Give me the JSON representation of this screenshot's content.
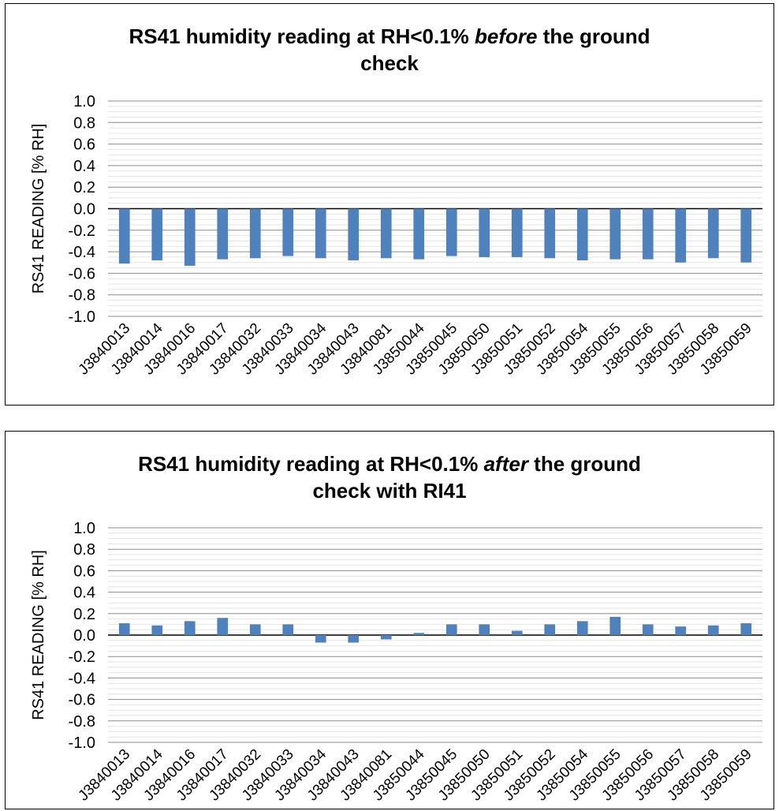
{
  "chart_data": [
    {
      "type": "bar",
      "title": {
        "before": "RS41 humidity reading at RH<0.1% ",
        "emph": "before",
        "after": " the ground",
        "line2": "check"
      },
      "ylabel": "RS41 READING [% RH]",
      "ylim": [
        -1.0,
        1.0
      ],
      "ytick_labels": [
        "1.0",
        "0.8",
        "0.6",
        "0.4",
        "0.2",
        "0.0",
        "-0.2",
        "-0.4",
        "-0.6",
        "-0.8",
        "-1.0"
      ],
      "grid": true,
      "bar_color": "#4f81bd",
      "categories": [
        "J3840013",
        "J3840014",
        "J3840016",
        "J3840017",
        "J3840032",
        "J3840033",
        "J3840034",
        "J3840043",
        "J3840081",
        "J3850044",
        "J3850045",
        "J3850050",
        "J3850051",
        "J3850052",
        "J3850054",
        "J3850055",
        "J3850056",
        "J3850057",
        "J3850058",
        "J3850059"
      ],
      "values": [
        -0.51,
        -0.48,
        -0.53,
        -0.47,
        -0.46,
        -0.44,
        -0.46,
        -0.48,
        -0.46,
        -0.47,
        -0.44,
        -0.45,
        -0.45,
        -0.46,
        -0.48,
        -0.47,
        -0.47,
        -0.5,
        -0.46,
        -0.5
      ]
    },
    {
      "type": "bar",
      "title": {
        "before": "RS41 humidity reading at RH<0.1% ",
        "emph": "after",
        "after": " the ground",
        "line2": "check with RI41"
      },
      "ylabel": "RS41 READING [% RH]",
      "ylim": [
        -1.0,
        1.0
      ],
      "ytick_labels": [
        "1.0",
        "0.8",
        "0.6",
        "0.4",
        "0.2",
        "0.0",
        "-0.2",
        "-0.4",
        "-0.6",
        "-0.8",
        "-1.0"
      ],
      "grid": true,
      "bar_color": "#4f81bd",
      "categories": [
        "J3840013",
        "J3840014",
        "J3840016",
        "J3840017",
        "J3840032",
        "J3840033",
        "J3840034",
        "J3840043",
        "J3840081",
        "J3850044",
        "J3850045",
        "J3850050",
        "J3850051",
        "J3850052",
        "J3850054",
        "J3850055",
        "J3850056",
        "J3850057",
        "J3850058",
        "J3850059"
      ],
      "values": [
        0.11,
        0.09,
        0.13,
        0.16,
        0.1,
        0.1,
        -0.07,
        -0.07,
        -0.04,
        0.02,
        0.1,
        0.1,
        0.04,
        0.1,
        0.13,
        0.17,
        0.1,
        0.08,
        0.09,
        0.11
      ]
    }
  ]
}
